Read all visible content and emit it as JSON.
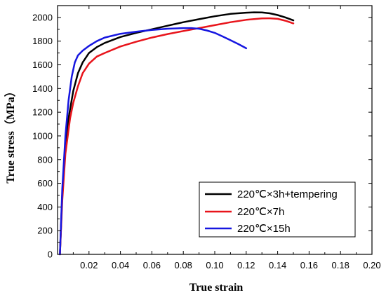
{
  "chart_data": {
    "type": "line",
    "xlabel": "True strain",
    "ylabel": "True stress（MPa）",
    "xlim": [
      0,
      0.2
    ],
    "ylim": [
      0,
      2100
    ],
    "x_ticks": [
      0.02,
      0.04,
      0.06,
      0.08,
      0.1,
      0.12,
      0.14,
      0.16,
      0.18,
      0.2
    ],
    "x_tick_labels": [
      "0.02",
      "0.04",
      "0.06",
      "0.08",
      "0.10",
      "0.12",
      "0.14",
      "0.16",
      "0.18",
      "0.20"
    ],
    "y_ticks": [
      0,
      200,
      400,
      600,
      800,
      1000,
      1200,
      1400,
      1600,
      1800,
      2000
    ],
    "y_tick_labels": [
      "0",
      "200",
      "400",
      "600",
      "800",
      "1000",
      "1200",
      "1400",
      "1600",
      "1800",
      "2000"
    ],
    "grid": false,
    "legend_position": "bottom-right",
    "series": [
      {
        "name": "220℃×3h+tempering",
        "color": "#000000",
        "x": [
          0.0015,
          0.003,
          0.005,
          0.007,
          0.01,
          0.013,
          0.016,
          0.02,
          0.025,
          0.03,
          0.04,
          0.05,
          0.06,
          0.07,
          0.08,
          0.09,
          0.1,
          0.11,
          0.12,
          0.125,
          0.13,
          0.135,
          0.14,
          0.145,
          0.15
        ],
        "y": [
          0,
          500,
          900,
          1150,
          1380,
          1530,
          1620,
          1700,
          1750,
          1785,
          1835,
          1870,
          1900,
          1930,
          1960,
          1985,
          2010,
          2030,
          2040,
          2043,
          2042,
          2035,
          2020,
          2000,
          1975
        ]
      },
      {
        "name": "220℃×7h",
        "color": "#e8141b",
        "x": [
          0.0015,
          0.003,
          0.005,
          0.008,
          0.01,
          0.013,
          0.016,
          0.02,
          0.025,
          0.03,
          0.04,
          0.05,
          0.06,
          0.07,
          0.08,
          0.09,
          0.1,
          0.11,
          0.12,
          0.13,
          0.135,
          0.14,
          0.145,
          0.15
        ],
        "y": [
          0,
          450,
          850,
          1150,
          1280,
          1420,
          1530,
          1610,
          1670,
          1700,
          1755,
          1795,
          1830,
          1860,
          1885,
          1910,
          1935,
          1960,
          1980,
          1992,
          1993,
          1988,
          1972,
          1950
        ]
      },
      {
        "name": "220℃×15h",
        "color": "#1616e0",
        "x": [
          0.0015,
          0.003,
          0.005,
          0.007,
          0.009,
          0.011,
          0.013,
          0.016,
          0.02,
          0.025,
          0.03,
          0.04,
          0.05,
          0.06,
          0.07,
          0.08,
          0.085,
          0.09,
          0.095,
          0.1,
          0.105,
          0.11,
          0.115,
          0.12
        ],
        "y": [
          0,
          550,
          1000,
          1300,
          1500,
          1620,
          1680,
          1720,
          1760,
          1800,
          1830,
          1862,
          1880,
          1895,
          1905,
          1910,
          1910,
          1905,
          1890,
          1870,
          1840,
          1808,
          1775,
          1740
        ]
      }
    ]
  }
}
